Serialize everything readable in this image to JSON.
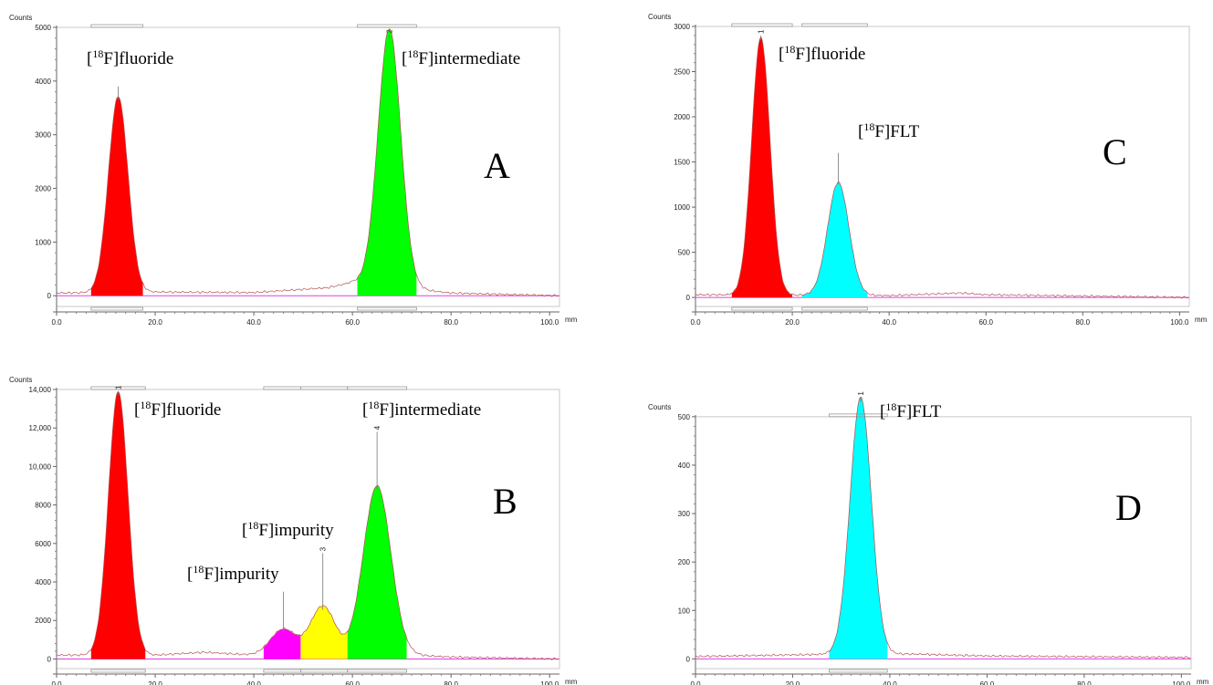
{
  "chart_data": [
    {
      "id": "A",
      "type": "area",
      "panel_label": "A",
      "ylabel": "Counts",
      "xunit": "mm",
      "xlim": [
        0,
        102
      ],
      "ylim": [
        -200,
        5000
      ],
      "xticks": [
        "0.0",
        "20.0",
        "40.0",
        "60.0",
        "80.0",
        "100.0"
      ],
      "yticks": [
        "0",
        "1000",
        "2000",
        "3000",
        "4000",
        "5000"
      ],
      "baseline": [
        [
          0,
          50
        ],
        [
          20,
          70
        ],
        [
          40,
          60
        ],
        [
          55,
          150
        ],
        [
          60,
          250
        ],
        [
          80,
          50
        ],
        [
          102,
          0
        ]
      ],
      "peaks": [
        {
          "number": "",
          "center": 12.5,
          "height": 3650,
          "sigma": 2.0,
          "range": [
            7,
            17.5
          ],
          "color": "#ff0000",
          "apex": 3900,
          "label_pre": "[",
          "label_sup": "18",
          "label_post": "F]fluoride"
        },
        {
          "number": "2",
          "center": 67.5,
          "height": 4800,
          "sigma": 2.3,
          "range": [
            61,
            73
          ],
          "color": "#00ff00",
          "apex": 4850,
          "label_pre": "[",
          "label_sup": "18",
          "label_post": "F]intermediate"
        }
      ]
    },
    {
      "id": "B",
      "type": "area",
      "panel_label": "B",
      "ylabel": "Counts",
      "xunit": "mm",
      "xlim": [
        0,
        102
      ],
      "ylim": [
        -500,
        14000
      ],
      "xticks": [
        "0.0",
        "20.0",
        "40.0",
        "60.0",
        "80.0",
        "100.0"
      ],
      "yticks": [
        "0",
        "2000",
        "4000",
        "6000",
        "8000",
        "10,000",
        "12,000",
        "14,000"
      ],
      "baseline": [
        [
          0,
          200
        ],
        [
          20,
          200
        ],
        [
          30,
          350
        ],
        [
          40,
          200
        ],
        [
          72,
          200
        ],
        [
          80,
          100
        ],
        [
          102,
          0
        ]
      ],
      "peaks": [
        {
          "number": "1",
          "center": 12.5,
          "height": 13700,
          "sigma": 2.0,
          "range": [
            7,
            18
          ],
          "color": "#ff0000",
          "apex": 13900,
          "label_pre": "[",
          "label_sup": "18",
          "label_post": "F]fluoride"
        },
        {
          "number": "",
          "center": 46.0,
          "height": 1350,
          "sigma": 2.6,
          "range": [
            42,
            49.5
          ],
          "color": "#ff00ff",
          "apex": 3500,
          "label_pre": "[",
          "label_sup": "18",
          "label_post": "F]impurity"
        },
        {
          "number": "3",
          "center": 54.0,
          "height": 2550,
          "sigma": 2.5,
          "range": [
            49.5,
            59
          ],
          "color": "#ffff00",
          "apex": 5500,
          "label_pre": "[",
          "label_sup": "18",
          "label_post": "F]impurity"
        },
        {
          "number": "4",
          "center": 65.0,
          "height": 8800,
          "sigma": 2.8,
          "range": [
            59,
            71
          ],
          "color": "#00ff00",
          "apex": 11800,
          "label_pre": "[",
          "label_sup": "18",
          "label_post": "F]intermediate"
        }
      ]
    },
    {
      "id": "C",
      "type": "area",
      "panel_label": "C",
      "ylabel": "Counts",
      "xunit": "mm",
      "xlim": [
        0,
        102
      ],
      "ylim": [
        -100,
        3000
      ],
      "xticks": [
        "0.0",
        "20.0",
        "40.0",
        "60.0",
        "80.0",
        "100.0"
      ],
      "yticks": [
        "0",
        "500",
        "1000",
        "1500",
        "2000",
        "2500",
        "3000"
      ],
      "baseline": [
        [
          0,
          30
        ],
        [
          40,
          20
        ],
        [
          55,
          50
        ],
        [
          60,
          30
        ],
        [
          102,
          0
        ]
      ],
      "peaks": [
        {
          "number": "1",
          "center": 13.5,
          "height": 2850,
          "sigma": 1.9,
          "range": [
            7.5,
            20
          ],
          "color": "#ff0000",
          "apex": 2900,
          "label_pre": "[",
          "label_sup": "18",
          "label_post": "F]fluoride"
        },
        {
          "number": "",
          "center": 29.5,
          "height": 1250,
          "sigma": 2.2,
          "range": [
            22,
            35.5
          ],
          "color": "#00ffff",
          "apex": 1600,
          "label_pre": "[",
          "label_sup": "18",
          "label_post": "F]FLT"
        }
      ]
    },
    {
      "id": "D",
      "type": "area",
      "panel_label": "D",
      "ylabel": "Counts",
      "xunit": "mm",
      "xlim": [
        0,
        102
      ],
      "ylim": [
        -20,
        560
      ],
      "xticks": [
        "0.0",
        "20.0",
        "40.0",
        "60.0",
        "80.0",
        "100.0"
      ],
      "yticks": [
        "0",
        "100",
        "200",
        "300",
        "400",
        "500"
      ],
      "baseline": [
        [
          0,
          5
        ],
        [
          30,
          10
        ],
        [
          45,
          10
        ],
        [
          60,
          6
        ],
        [
          102,
          3
        ]
      ],
      "peaks": [
        {
          "number": "1",
          "center": 34.0,
          "height": 530,
          "sigma": 2.2,
          "range": [
            27.5,
            39.5
          ],
          "color": "#00ffff",
          "apex": 540,
          "label_pre": "[",
          "label_sup": "18",
          "label_post": "F]FLT"
        }
      ]
    }
  ]
}
